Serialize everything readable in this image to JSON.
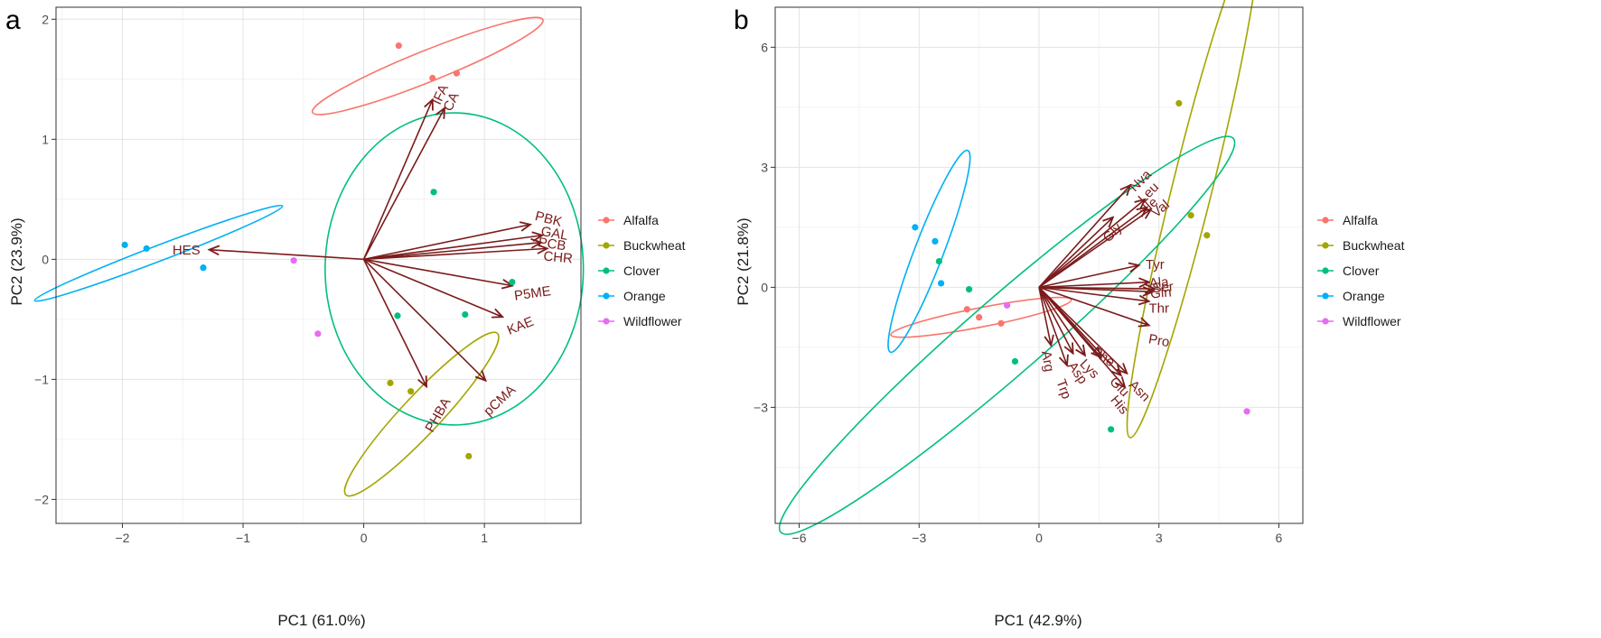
{
  "panels": {
    "a": {
      "letter": "a"
    },
    "b": {
      "letter": "b"
    }
  },
  "legend": [
    {
      "name": "Alfalfa",
      "color": "#F8766D"
    },
    {
      "name": "Buckwheat",
      "color": "#A3A500"
    },
    {
      "name": "Clover",
      "color": "#00BF7D"
    },
    {
      "name": "Orange",
      "color": "#00B0F6"
    },
    {
      "name": "Wildflower",
      "color": "#E76BF3"
    }
  ],
  "loading_color": "#7b1b1b",
  "chart_data": [
    {
      "type": "scatter",
      "xlabel": "PC1 (61.0%)",
      "ylabel": "PC2 (23.9%)",
      "xlim": [
        -2.55,
        1.8
      ],
      "ylim": [
        -2.2,
        2.1
      ],
      "xticks": [
        -2,
        -1,
        0,
        1
      ],
      "yticks": [
        -2,
        -1,
        0,
        1,
        2
      ],
      "xtick_labels": [
        "−2",
        "−1",
        "0",
        "1"
      ],
      "ytick_labels": [
        "−2",
        "−1",
        "0",
        "1",
        "2"
      ],
      "grid": true,
      "legend_position": "right",
      "series": [
        {
          "name": "Alfalfa",
          "points": [
            [
              0.29,
              1.78
            ],
            [
              0.57,
              1.51
            ],
            [
              0.77,
              1.55
            ]
          ]
        },
        {
          "name": "Buckwheat",
          "points": [
            [
              0.22,
              -1.03
            ],
            [
              0.39,
              -1.1
            ],
            [
              0.87,
              -1.64
            ]
          ]
        },
        {
          "name": "Clover",
          "points": [
            [
              0.58,
              0.56
            ],
            [
              1.23,
              -0.19
            ],
            [
              0.84,
              -0.46
            ],
            [
              0.28,
              -0.47
            ]
          ]
        },
        {
          "name": "Orange",
          "points": [
            [
              -1.98,
              0.12
            ],
            [
              -1.8,
              0.09
            ],
            [
              -1.33,
              -0.07
            ]
          ]
        },
        {
          "name": "Wildflower",
          "points": [
            [
              -0.58,
              -0.01
            ],
            [
              -0.38,
              -0.62
            ]
          ]
        }
      ],
      "ellipses": [
        {
          "group": "Alfalfa",
          "cx": 0.53,
          "cy": 1.61,
          "rx": 1.03,
          "ry": 0.13,
          "angle_deg": 22
        },
        {
          "group": "Buckwheat",
          "cx": 0.48,
          "cy": -1.29,
          "rx": 0.92,
          "ry": 0.16,
          "angle_deg": 47
        },
        {
          "group": "Clover",
          "cx": 0.75,
          "cy": -0.08,
          "rx": 1.07,
          "ry": 1.3,
          "angle_deg": 0
        },
        {
          "group": "Orange",
          "cx": -1.7,
          "cy": 0.05,
          "rx": 1.1,
          "ry": 0.065,
          "angle_deg": 21
        },
        {
          "group": "Wildflower",
          "cx": -0.48,
          "cy": -0.3,
          "rx": 0,
          "ry": 0,
          "angle_deg": 0
        }
      ],
      "loadings": [
        {
          "label": "IFA",
          "x": 0.57,
          "y": 1.33,
          "lx": 0.64,
          "ly": 1.37,
          "rot": -65
        },
        {
          "label": "CA",
          "x": 0.67,
          "y": 1.26,
          "lx": 0.73,
          "ly": 1.31,
          "rot": -65
        },
        {
          "label": "PBK",
          "x": 1.38,
          "y": 0.29,
          "lx": 1.53,
          "ly": 0.33,
          "rot": 14
        },
        {
          "label": "GAL",
          "x": 1.48,
          "y": 0.2,
          "lx": 1.58,
          "ly": 0.21,
          "rot": 10
        },
        {
          "label": "PCB",
          "x": 1.47,
          "y": 0.14,
          "lx": 1.56,
          "ly": 0.12,
          "rot": 8
        },
        {
          "label": "CHR",
          "x": 1.52,
          "y": 0.09,
          "lx": 1.61,
          "ly": 0.01,
          "rot": 5
        },
        {
          "label": "P5ME",
          "x": 1.23,
          "y": -0.22,
          "lx": 1.4,
          "ly": -0.29,
          "rot": -8
        },
        {
          "label": "KAE",
          "x": 1.15,
          "y": -0.48,
          "lx": 1.3,
          "ly": -0.56,
          "rot": -22
        },
        {
          "label": "pCMA",
          "x": 1.01,
          "y": -1.01,
          "lx": 1.13,
          "ly": -1.18,
          "rot": -43
        },
        {
          "label": "PHBA",
          "x": 0.52,
          "y": -1.06,
          "lx": 0.62,
          "ly": -1.3,
          "rot": -60
        },
        {
          "label": "HES",
          "x": -1.28,
          "y": 0.08,
          "lx": -1.47,
          "ly": 0.07,
          "rot": 0
        }
      ]
    },
    {
      "type": "scatter",
      "xlabel": "PC1 (42.9%)",
      "ylabel": "PC2 (21.8%)",
      "xlim": [
        -6.6,
        6.6
      ],
      "ylim": [
        -5.9,
        7.0
      ],
      "xticks": [
        -6,
        -3,
        0,
        3,
        6
      ],
      "yticks": [
        -3,
        0,
        3,
        6
      ],
      "xtick_labels": [
        "−6",
        "−3",
        "0",
        "3",
        "6"
      ],
      "ytick_labels": [
        "−3",
        "0",
        "3",
        "6"
      ],
      "grid": true,
      "legend_position": "right",
      "series": [
        {
          "name": "Alfalfa",
          "points": [
            [
              -1.8,
              -0.55
            ],
            [
              -1.5,
              -0.75
            ],
            [
              -0.95,
              -0.9
            ]
          ]
        },
        {
          "name": "Buckwheat",
          "points": [
            [
              3.5,
              4.6
            ],
            [
              3.8,
              1.8
            ],
            [
              4.2,
              1.3
            ]
          ]
        },
        {
          "name": "Clover",
          "points": [
            [
              -2.5,
              0.65
            ],
            [
              -1.75,
              -0.05
            ],
            [
              -0.6,
              -1.85
            ],
            [
              1.8,
              -3.55
            ]
          ]
        },
        {
          "name": "Orange",
          "points": [
            [
              -3.1,
              1.5
            ],
            [
              -2.6,
              1.15
            ],
            [
              -2.45,
              0.1
            ]
          ]
        },
        {
          "name": "Wildflower",
          "points": [
            [
              -0.8,
              -0.45
            ],
            [
              5.2,
              -3.1
            ]
          ]
        }
      ],
      "ellipses": [
        {
          "group": "Alfalfa",
          "cx": -1.45,
          "cy": -0.75,
          "rx": 2.3,
          "ry": 0.24,
          "angle_deg": 11
        },
        {
          "group": "Buckwheat",
          "cx": 3.85,
          "cy": 2.55,
          "rx": 6.5,
          "ry": 0.5,
          "angle_deg": 76
        },
        {
          "group": "Clover",
          "cx": -0.8,
          "cy": -1.2,
          "rx": 7.5,
          "ry": 0.95,
          "angle_deg": 41
        },
        {
          "group": "Orange",
          "cx": -2.75,
          "cy": 0.9,
          "rx": 2.7,
          "ry": 0.36,
          "angle_deg": 69
        },
        {
          "group": "Wildflower",
          "cx": 2.2,
          "cy": -1.8,
          "rx": 0,
          "ry": 0,
          "angle_deg": 0
        }
      ],
      "loadings": [
        {
          "label": "Nva",
          "x": 2.28,
          "y": 2.55,
          "lx": 2.55,
          "ly": 2.65,
          "rot": -45
        },
        {
          "label": "Leu",
          "x": 2.65,
          "y": 2.2,
          "lx": 2.75,
          "ly": 2.35,
          "rot": -45
        },
        {
          "label": "Ile",
          "x": 2.7,
          "y": 2.0,
          "lx": 2.8,
          "ly": 2.05,
          "rot": -42
        },
        {
          "label": "Val",
          "x": 2.8,
          "y": 1.95,
          "lx": 3.05,
          "ly": 1.95,
          "rot": -40
        },
        {
          "label": "Gly",
          "x": 1.85,
          "y": 1.75,
          "lx": 1.85,
          "ly": 1.35,
          "rot": -45
        },
        {
          "label": "Tyr",
          "x": 2.5,
          "y": 0.55,
          "lx": 2.9,
          "ly": 0.55,
          "rot": 0
        },
        {
          "label": "Ala",
          "x": 2.75,
          "y": 0.13,
          "lx": 3.0,
          "ly": 0.1,
          "rot": -5
        },
        {
          "label": "Ser",
          "x": 2.9,
          "y": -0.04,
          "lx": 3.1,
          "ly": -0.02,
          "rot": -5
        },
        {
          "label": "Gln",
          "x": 2.85,
          "y": -0.11,
          "lx": 3.05,
          "ly": -0.16,
          "rot": -5
        },
        {
          "label": "Thr",
          "x": 2.75,
          "y": -0.35,
          "lx": 3.0,
          "ly": -0.55,
          "rot": 0
        },
        {
          "label": "Pro",
          "x": 2.75,
          "y": -0.95,
          "lx": 3.0,
          "ly": -1.35,
          "rot": 10
        },
        {
          "label": "Arg",
          "x": 0.3,
          "y": -1.45,
          "lx": 0.2,
          "ly": -1.85,
          "rot": 80
        },
        {
          "label": "Trp",
          "x": 0.7,
          "y": -1.95,
          "lx": 0.6,
          "ly": -2.55,
          "rot": 70
        },
        {
          "label": "Asp",
          "x": 0.85,
          "y": -1.65,
          "lx": 0.95,
          "ly": -2.15,
          "rot": 55
        },
        {
          "label": "Lys",
          "x": 1.15,
          "y": -1.7,
          "lx": 1.25,
          "ly": -2.05,
          "rot": 45
        },
        {
          "label": "Phe",
          "x": 1.55,
          "y": -1.75,
          "lx": 1.6,
          "ly": -1.75,
          "rot": 35
        },
        {
          "label": "Glu",
          "x": 2.05,
          "y": -2.2,
          "lx": 2.0,
          "ly": -2.5,
          "rot": 45
        },
        {
          "label": "His",
          "x": 2.15,
          "y": -2.5,
          "lx": 2.0,
          "ly": -2.95,
          "rot": 50
        },
        {
          "label": "Asn",
          "x": 2.2,
          "y": -2.15,
          "lx": 2.5,
          "ly": -2.6,
          "rot": 45
        }
      ]
    }
  ]
}
